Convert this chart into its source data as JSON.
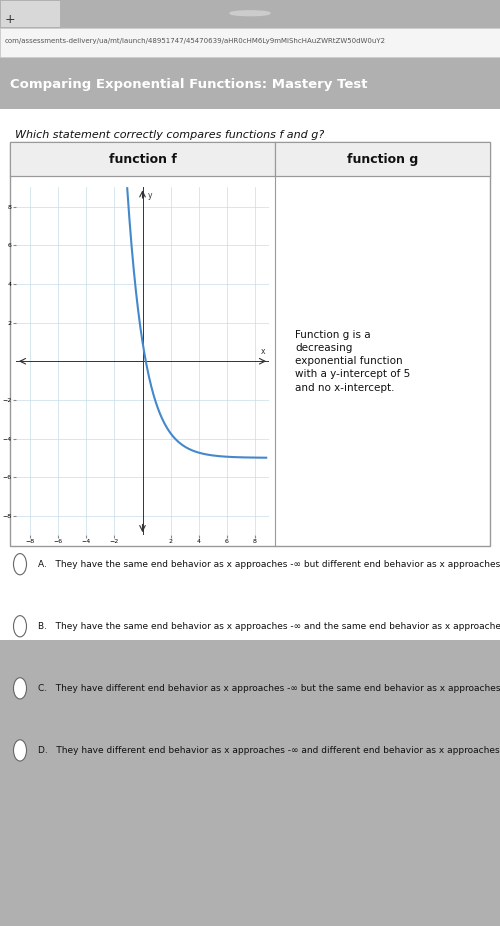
{
  "title": "Comparing Exponential Functions: Mastery Test",
  "question": "Which statement correctly compares functions f and g?",
  "browser_tab": "+",
  "url": "com/assessments-delivery/ua/mt/launch/48951747/45470639/aHR0cHM6Ly9mMiShcHAuZWRtZW50dW0uY2",
  "function_f_label": "function f",
  "function_g_label": "function g",
  "function_g_text": "Function g is a\ndecreasing\nexponential function\nwith a y-intercept of 5\nand no x-intercept.",
  "x_ticks": [
    -8,
    -6,
    -4,
    -2,
    2,
    4,
    6,
    8
  ],
  "y_ticks": [
    -8,
    -6,
    -4,
    -2,
    2,
    4,
    6,
    8
  ],
  "xlim": [
    -9,
    9
  ],
  "ylim": [
    -9,
    9
  ],
  "curve_color": "#4488cc",
  "grid_color": "#c8dce8",
  "answer_choices": [
    "A.   They have the same end behavior as x approaches -∞ but different end behavior as x approaches +∞.",
    "B.   They have the same end behavior as x approaches -∞ and the same end behavior as x approaches +∞.",
    "C.   They have different end behavior as x approaches -∞ but the same end behavior as x approaches +∞.",
    "D.   They have different end behavior as x approaches -∞ and different end behavior as x approaches +∞."
  ],
  "header_bg": "#4472c4",
  "header_text_color": "#ffffff",
  "table_border_color": "#999999",
  "curve_A": 6,
  "curve_r": 0.46,
  "curve_C": -5,
  "curve_x_start": -1.5,
  "curve_x_end": 8.8
}
